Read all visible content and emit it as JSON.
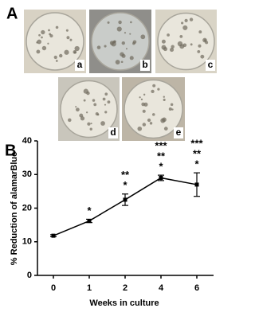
{
  "panel_a": {
    "label": "A",
    "images": [
      "a",
      "b",
      "c",
      "d",
      "e"
    ]
  },
  "chart_data": {
    "type": "line",
    "panel_label": "B",
    "x_label": "Weeks in culture",
    "y_label": "% Reduction of alamarBlue",
    "categories": [
      "0",
      "1",
      "2",
      "4",
      "6"
    ],
    "values": [
      11.8,
      16.2,
      22.5,
      29,
      27
    ],
    "errors": [
      0.3,
      0.5,
      1.7,
      0.8,
      3.5
    ],
    "significance": [
      null,
      [
        "*"
      ],
      [
        "**",
        "*"
      ],
      [
        "***",
        "**",
        "*"
      ],
      [
        "***",
        "**",
        "*"
      ]
    ],
    "color": "#000000",
    "ylim": [
      0,
      40
    ],
    "yticks": [
      0,
      10,
      20,
      30,
      40
    ]
  }
}
